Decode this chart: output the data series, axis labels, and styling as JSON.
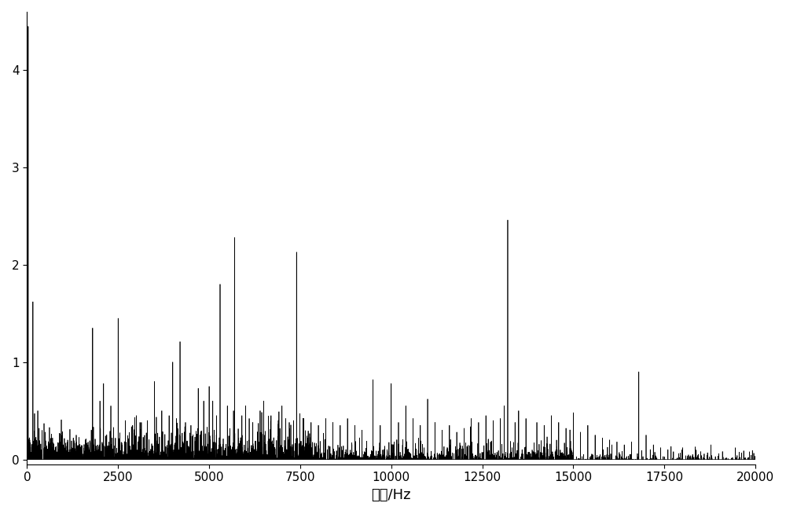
{
  "xlabel": "頻率/Hz",
  "ylabel": "",
  "xlim": [
    0,
    20000
  ],
  "ylim": [
    -0.05,
    4.6
  ],
  "xticks": [
    0,
    2500,
    5000,
    7500,
    10000,
    12500,
    15000,
    17500,
    20000
  ],
  "yticks": [
    0,
    1,
    2,
    3,
    4
  ],
  "line_color": "#000000",
  "background_color": "#ffffff",
  "linewidth": 0.5,
  "figsize": [
    10.0,
    6.54
  ],
  "dpi": 100,
  "xlabel_fontsize": 13,
  "tick_fontsize": 11,
  "prominent_peaks": [
    {
      "freq": 30,
      "amp": 4.45
    },
    {
      "freq": 160,
      "amp": 1.62
    },
    {
      "freq": 330,
      "amp": 0.32
    },
    {
      "freq": 500,
      "amp": 0.28
    },
    {
      "freq": 700,
      "amp": 0.22
    },
    {
      "freq": 900,
      "amp": 0.18
    },
    {
      "freq": 1100,
      "amp": 0.15
    },
    {
      "freq": 1350,
      "amp": 0.25
    },
    {
      "freq": 1600,
      "amp": 0.2
    },
    {
      "freq": 1800,
      "amp": 1.35
    },
    {
      "freq": 2000,
      "amp": 0.6
    },
    {
      "freq": 2100,
      "amp": 0.78
    },
    {
      "freq": 2300,
      "amp": 0.55
    },
    {
      "freq": 2500,
      "amp": 1.45
    },
    {
      "freq": 2700,
      "amp": 0.4
    },
    {
      "freq": 2900,
      "amp": 0.35
    },
    {
      "freq": 3000,
      "amp": 0.45
    },
    {
      "freq": 3100,
      "amp": 0.38
    },
    {
      "freq": 3300,
      "amp": 0.4
    },
    {
      "freq": 3500,
      "amp": 0.8
    },
    {
      "freq": 3700,
      "amp": 0.5
    },
    {
      "freq": 3900,
      "amp": 0.45
    },
    {
      "freq": 4000,
      "amp": 1.0
    },
    {
      "freq": 4100,
      "amp": 0.42
    },
    {
      "freq": 4200,
      "amp": 1.21
    },
    {
      "freq": 4350,
      "amp": 0.38
    },
    {
      "freq": 4500,
      "amp": 0.35
    },
    {
      "freq": 4700,
      "amp": 0.73
    },
    {
      "freq": 4850,
      "amp": 0.6
    },
    {
      "freq": 5000,
      "amp": 0.75
    },
    {
      "freq": 5100,
      "amp": 0.6
    },
    {
      "freq": 5200,
      "amp": 0.45
    },
    {
      "freq": 5300,
      "amp": 1.8
    },
    {
      "freq": 5500,
      "amp": 0.55
    },
    {
      "freq": 5700,
      "amp": 2.28
    },
    {
      "freq": 5900,
      "amp": 0.45
    },
    {
      "freq": 6000,
      "amp": 0.55
    },
    {
      "freq": 6100,
      "amp": 0.42
    },
    {
      "freq": 6200,
      "amp": 0.38
    },
    {
      "freq": 6400,
      "amp": 0.5
    },
    {
      "freq": 6500,
      "amp": 0.6
    },
    {
      "freq": 6700,
      "amp": 0.45
    },
    {
      "freq": 6900,
      "amp": 0.4
    },
    {
      "freq": 7000,
      "amp": 0.55
    },
    {
      "freq": 7100,
      "amp": 0.42
    },
    {
      "freq": 7200,
      "amp": 0.38
    },
    {
      "freq": 7400,
      "amp": 2.13
    },
    {
      "freq": 7600,
      "amp": 0.42
    },
    {
      "freq": 7800,
      "amp": 0.38
    },
    {
      "freq": 8000,
      "amp": 0.35
    },
    {
      "freq": 8200,
      "amp": 0.42
    },
    {
      "freq": 8400,
      "amp": 0.38
    },
    {
      "freq": 8600,
      "amp": 0.35
    },
    {
      "freq": 8800,
      "amp": 0.42
    },
    {
      "freq": 9000,
      "amp": 0.35
    },
    {
      "freq": 9200,
      "amp": 0.3
    },
    {
      "freq": 9500,
      "amp": 0.82
    },
    {
      "freq": 9700,
      "amp": 0.35
    },
    {
      "freq": 10000,
      "amp": 0.78
    },
    {
      "freq": 10200,
      "amp": 0.38
    },
    {
      "freq": 10400,
      "amp": 0.55
    },
    {
      "freq": 10600,
      "amp": 0.42
    },
    {
      "freq": 10800,
      "amp": 0.35
    },
    {
      "freq": 11000,
      "amp": 0.62
    },
    {
      "freq": 11200,
      "amp": 0.38
    },
    {
      "freq": 11400,
      "amp": 0.3
    },
    {
      "freq": 11600,
      "amp": 0.35
    },
    {
      "freq": 11800,
      "amp": 0.28
    },
    {
      "freq": 12000,
      "amp": 0.32
    },
    {
      "freq": 12200,
      "amp": 0.42
    },
    {
      "freq": 12400,
      "amp": 0.38
    },
    {
      "freq": 12600,
      "amp": 0.45
    },
    {
      "freq": 12800,
      "amp": 0.4
    },
    {
      "freq": 13000,
      "amp": 0.42
    },
    {
      "freq": 13100,
      "amp": 0.55
    },
    {
      "freq": 13200,
      "amp": 2.46
    },
    {
      "freq": 13400,
      "amp": 0.38
    },
    {
      "freq": 13500,
      "amp": 0.5
    },
    {
      "freq": 13700,
      "amp": 0.42
    },
    {
      "freq": 14000,
      "amp": 0.38
    },
    {
      "freq": 14200,
      "amp": 0.35
    },
    {
      "freq": 14400,
      "amp": 0.45
    },
    {
      "freq": 14600,
      "amp": 0.38
    },
    {
      "freq": 14800,
      "amp": 0.32
    },
    {
      "freq": 15000,
      "amp": 0.48
    },
    {
      "freq": 15200,
      "amp": 0.28
    },
    {
      "freq": 15400,
      "amp": 0.35
    },
    {
      "freq": 15600,
      "amp": 0.25
    },
    {
      "freq": 15800,
      "amp": 0.22
    },
    {
      "freq": 16000,
      "amp": 0.2
    },
    {
      "freq": 16200,
      "amp": 0.18
    },
    {
      "freq": 16400,
      "amp": 0.15
    },
    {
      "freq": 16600,
      "amp": 0.18
    },
    {
      "freq": 16800,
      "amp": 0.9
    },
    {
      "freq": 17000,
      "amp": 0.25
    },
    {
      "freq": 17200,
      "amp": 0.15
    },
    {
      "freq": 17400,
      "amp": 0.12
    },
    {
      "freq": 17600,
      "amp": 0.1
    },
    {
      "freq": 18000,
      "amp": 0.12
    },
    {
      "freq": 18500,
      "amp": 0.08
    },
    {
      "freq": 19000,
      "amp": 0.06
    },
    {
      "freq": 19500,
      "amp": 0.04
    }
  ]
}
